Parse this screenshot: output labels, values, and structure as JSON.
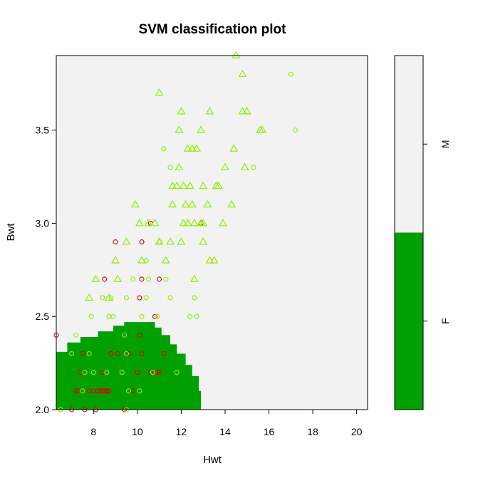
{
  "chart_data": {
    "type": "scatter",
    "title": "SVM classification plot",
    "xlabel": "Hwt",
    "ylabel": "Bwt",
    "xlim": [
      6.3,
      20.5
    ],
    "ylim": [
      2.0,
      3.9
    ],
    "x_ticks": [
      8,
      10,
      12,
      14,
      16,
      18,
      20
    ],
    "y_ticks": [
      2.0,
      2.5,
      3.0,
      3.5
    ],
    "x_tick_labels": [
      "8",
      "10",
      "12",
      "14",
      "16",
      "18",
      "20"
    ],
    "y_tick_labels": [
      "2.0",
      "2.5",
      "3.0",
      "3.5"
    ],
    "grid": false,
    "colors": {
      "region_F": "#00a000",
      "region_M": "#f2f2f2",
      "class_F": "#e00000",
      "class_M": "#90ee00"
    },
    "regions": [
      {
        "class": "F",
        "boundary": [
          [
            6.3,
            2.0
          ],
          [
            6.3,
            2.31
          ],
          [
            6.8,
            2.31
          ],
          [
            6.8,
            2.36
          ],
          [
            7.4,
            2.36
          ],
          [
            7.4,
            2.39
          ],
          [
            8.2,
            2.39
          ],
          [
            8.2,
            2.42
          ],
          [
            8.9,
            2.42
          ],
          [
            8.9,
            2.45
          ],
          [
            9.4,
            2.45
          ],
          [
            9.4,
            2.47
          ],
          [
            10.8,
            2.47
          ],
          [
            10.8,
            2.44
          ],
          [
            11.1,
            2.44
          ],
          [
            11.1,
            2.4
          ],
          [
            11.5,
            2.4
          ],
          [
            11.5,
            2.35
          ],
          [
            11.8,
            2.35
          ],
          [
            11.8,
            2.3
          ],
          [
            12.2,
            2.3
          ],
          [
            12.2,
            2.24
          ],
          [
            12.5,
            2.24
          ],
          [
            12.5,
            2.18
          ],
          [
            12.8,
            2.18
          ],
          [
            12.8,
            2.1
          ],
          [
            12.9,
            2.1
          ],
          [
            12.9,
            2.0
          ]
        ]
      },
      {
        "class": "M",
        "boundary": "remainder"
      }
    ],
    "legend": {
      "position": "right",
      "type": "colorbar",
      "entries": [
        {
          "label": "F",
          "color": "#00a000",
          "from": 0,
          "to": 0.5
        },
        {
          "label": "M",
          "color": "#f2f2f2",
          "from": 0.5,
          "to": 1
        }
      ]
    },
    "series": [
      {
        "class": "F",
        "marker": "circle",
        "points": [
          [
            6.3,
            2.4
          ],
          [
            7.0,
            2.0
          ],
          [
            7.2,
            2.1
          ],
          [
            7.3,
            2.1
          ],
          [
            7.4,
            2.2
          ],
          [
            7.5,
            2.3
          ],
          [
            7.6,
            2.0
          ],
          [
            7.8,
            2.1
          ],
          [
            8.0,
            2.1
          ],
          [
            8.2,
            2.1
          ],
          [
            8.3,
            2.1
          ],
          [
            8.4,
            2.1
          ],
          [
            8.5,
            2.1
          ],
          [
            8.6,
            2.1
          ],
          [
            8.7,
            2.1
          ],
          [
            8.4,
            2.2
          ],
          [
            8.8,
            2.3
          ],
          [
            8.5,
            2.7
          ],
          [
            9.1,
            2.3
          ],
          [
            9.4,
            2.0
          ],
          [
            9.6,
            2.3
          ],
          [
            9.8,
            2.1
          ],
          [
            10.0,
            2.2
          ],
          [
            10.1,
            2.4
          ],
          [
            10.2,
            2.3
          ],
          [
            10.6,
            2.2
          ],
          [
            10.9,
            2.2
          ],
          [
            11.0,
            2.2
          ],
          [
            11.2,
            2.3
          ],
          [
            9.0,
            2.9
          ],
          [
            10.2,
            2.9
          ],
          [
            10.6,
            3.0
          ],
          [
            10.2,
            2.7
          ],
          [
            10.1,
            2.6
          ],
          [
            10.8,
            2.5
          ],
          [
            11.0,
            2.7
          ],
          [
            12.9,
            3.0
          ],
          [
            8.1,
            2.0
          ]
        ]
      },
      {
        "class": "M",
        "marker": "circle",
        "points": [
          [
            6.5,
            2.0
          ],
          [
            7.0,
            2.3
          ],
          [
            7.2,
            2.4
          ],
          [
            7.5,
            2.1
          ],
          [
            7.6,
            2.2
          ],
          [
            7.8,
            2.3
          ],
          [
            7.9,
            2.5
          ],
          [
            8.0,
            2.2
          ],
          [
            8.4,
            2.6
          ],
          [
            8.6,
            2.2
          ],
          [
            8.7,
            2.5
          ],
          [
            8.8,
            2.6
          ],
          [
            8.9,
            2.5
          ],
          [
            9.3,
            2.2
          ],
          [
            9.4,
            2.4
          ],
          [
            9.5,
            2.3
          ],
          [
            9.5,
            2.6
          ],
          [
            9.6,
            2.1
          ],
          [
            9.8,
            2.7
          ],
          [
            10.1,
            2.1
          ],
          [
            10.2,
            2.5
          ],
          [
            10.4,
            2.6
          ],
          [
            10.5,
            2.7
          ],
          [
            10.7,
            2.2
          ],
          [
            10.9,
            2.5
          ],
          [
            11.0,
            2.9
          ],
          [
            11.3,
            2.7
          ],
          [
            11.5,
            2.6
          ],
          [
            11.8,
            2.2
          ],
          [
            12.4,
            2.5
          ],
          [
            12.6,
            2.6
          ],
          [
            12.7,
            2.5
          ],
          [
            11.2,
            3.4
          ],
          [
            11.5,
            3.3
          ],
          [
            15.3,
            3.3
          ],
          [
            17.0,
            3.8
          ],
          [
            17.2,
            3.5
          ],
          [
            10.4,
            2.8
          ],
          [
            9.5,
            2.0
          ]
        ]
      },
      {
        "class": "M",
        "marker": "triangle",
        "points": [
          [
            7.8,
            2.6
          ],
          [
            8.1,
            2.7
          ],
          [
            8.7,
            2.6
          ],
          [
            9.1,
            2.7
          ],
          [
            9.0,
            2.8
          ],
          [
            9.5,
            2.9
          ],
          [
            9.9,
            3.1
          ],
          [
            10.1,
            3.0
          ],
          [
            10.2,
            2.8
          ],
          [
            10.5,
            3.0
          ],
          [
            10.8,
            3.0
          ],
          [
            11.0,
            2.9
          ],
          [
            11.0,
            3.7
          ],
          [
            11.3,
            2.8
          ],
          [
            11.5,
            2.9
          ],
          [
            11.6,
            3.1
          ],
          [
            11.6,
            3.2
          ],
          [
            11.8,
            3.2
          ],
          [
            11.9,
            3.5
          ],
          [
            12.0,
            3.6
          ],
          [
            11.9,
            3.3
          ],
          [
            12.0,
            2.9
          ],
          [
            12.1,
            3.0
          ],
          [
            12.2,
            3.1
          ],
          [
            12.1,
            3.2
          ],
          [
            12.3,
            3.0
          ],
          [
            12.3,
            3.4
          ],
          [
            12.4,
            3.2
          ],
          [
            12.5,
            3.1
          ],
          [
            12.5,
            3.4
          ],
          [
            12.6,
            2.7
          ],
          [
            12.6,
            3.0
          ],
          [
            12.7,
            3.4
          ],
          [
            12.9,
            3.5
          ],
          [
            12.9,
            3.0
          ],
          [
            13.0,
            3.2
          ],
          [
            13.0,
            2.9
          ],
          [
            13.0,
            3.0
          ],
          [
            13.2,
            3.1
          ],
          [
            13.3,
            3.6
          ],
          [
            13.3,
            2.8
          ],
          [
            13.5,
            2.8
          ],
          [
            13.6,
            3.2
          ],
          [
            13.7,
            3.2
          ],
          [
            13.9,
            3.0
          ],
          [
            14.0,
            3.3
          ],
          [
            14.3,
            3.1
          ],
          [
            14.4,
            3.4
          ],
          [
            14.5,
            3.9
          ],
          [
            14.8,
            3.6
          ],
          [
            14.8,
            3.8
          ],
          [
            15.0,
            3.6
          ],
          [
            14.9,
            3.3
          ],
          [
            15.6,
            3.5
          ],
          [
            15.7,
            3.5
          ]
        ]
      }
    ]
  }
}
